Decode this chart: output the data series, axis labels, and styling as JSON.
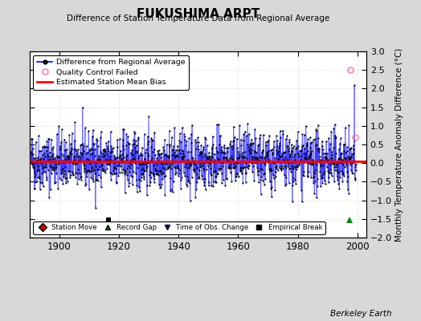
{
  "title": "FUKUSHIMA ARPT",
  "subtitle": "Difference of Station Temperature Data from Regional Average",
  "ylabel": "Monthly Temperature Anomaly Difference (°C)",
  "xlim": [
    1890,
    2003
  ],
  "ylim": [
    -2.0,
    3.0
  ],
  "yticks": [
    -2,
    -1.5,
    -1,
    -0.5,
    0,
    0.5,
    1,
    1.5,
    2,
    2.5,
    3
  ],
  "xticks": [
    1900,
    1920,
    1940,
    1960,
    1980,
    2000
  ],
  "bias_value": 0.05,
  "line_color": "#0000ff",
  "marker_color": "#000000",
  "bias_color": "#ff0000",
  "background_color": "#d8d8d8",
  "plot_bg_color": "#ffffff",
  "station_move_color": "#cc0000",
  "record_gap_color": "#008800",
  "obs_change_color": "#0000cc",
  "empirical_break_color": "#000000",
  "seed": 42,
  "n_points": 1320,
  "start_year": 1890.5,
  "end_year": 1999.5,
  "sigma": 0.42,
  "special_markers": {
    "station_moves": [],
    "record_gaps": [
      1997.5
    ],
    "obs_changes": [],
    "empirical_breaks": [
      1916.5
    ]
  },
  "qc_failed": [
    1997.7,
    1999.2
  ],
  "qc_values": [
    2.5,
    0.7
  ],
  "watermark": "Berkeley Earth"
}
